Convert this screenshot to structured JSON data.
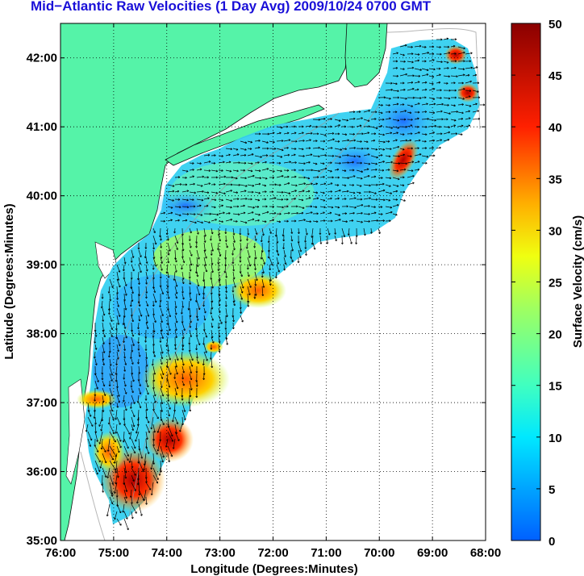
{
  "title": "Mid−Atlantic Raw Velocities (1 Day Avg) 2009/10/24 0700 GMT",
  "axes": {
    "xlabel": "Longitude (Degrees:Minutes)",
    "ylabel": "Latitude (Degrees:Minutes)",
    "x_ticks": [
      "76:00",
      "75:00",
      "74:00",
      "73:00",
      "72:00",
      "71:00",
      "70:00",
      "69:00",
      "68:00"
    ],
    "y_ticks": [
      "35:00",
      "36:00",
      "37:00",
      "38:00",
      "39:00",
      "40:00",
      "41:00",
      "42:00"
    ],
    "xlim": [
      -76,
      -68
    ],
    "ylim": [
      35,
      42.5
    ]
  },
  "colorbar": {
    "label": "Surface Velocity (cm/s)",
    "ticks": [
      "0",
      "5",
      "10",
      "15",
      "20",
      "25",
      "30",
      "35",
      "40",
      "45",
      "50"
    ],
    "range": [
      0,
      50
    ]
  },
  "colors": {
    "land": "#55f3a8",
    "title": "#1a10d8",
    "background": "#ffffff"
  }
}
